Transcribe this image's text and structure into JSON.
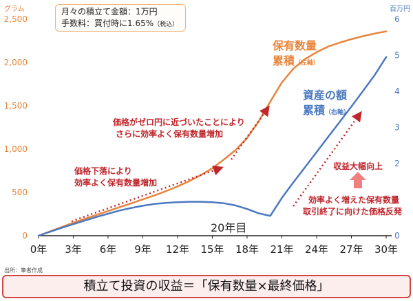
{
  "info": {
    "line1": "月々の積立て金額：1万円",
    "line2": "手数料：買付時に1.65%",
    "line2_note": "（税込）"
  },
  "units": {
    "left": "グラム",
    "right": "百万円"
  },
  "source": "出所：筆者作成",
  "bottom_formula": "積立て投資の収益＝「保有数量×最終価格」",
  "labels": {
    "quantity_l1": "保有数量",
    "quantity_l2": "累積",
    "quantity_axis": "（左軸）",
    "asset_l1": "資産の額",
    "asset_l2": "累積",
    "asset_axis": "（右軸）"
  },
  "annotations": {
    "a1_l1": "価格がゼロ円に近づいたことにより",
    "a1_l2": "さらに効率よく保有数量増加",
    "a2_l1": "価格下落により",
    "a2_l2": "効率よく保有数量増加",
    "a3": "収益大幅向上",
    "a4_l1": "効率よく増えた保有数量",
    "a4_l2": "取引終了に向けた価格反発",
    "year20": "20年目"
  },
  "colors": {
    "orange": "#e8843a",
    "blue": "#4a78c0",
    "red": "#c0262c",
    "arrow": "#f08080"
  },
  "chart_data": {
    "type": "line",
    "x_ticks": [
      "0年",
      "3年",
      "6年",
      "9年",
      "12年",
      "15年",
      "18年",
      "21年",
      "24年",
      "27年",
      "30年"
    ],
    "x_range": [
      0,
      30
    ],
    "y_left_ticks": [
      "0",
      "500",
      "1,000",
      "1,500",
      "2,000",
      "2,500"
    ],
    "y_left_range": [
      0,
      2500
    ],
    "y_right_ticks": [
      "0",
      "1",
      "2",
      "3",
      "4",
      "5",
      "6"
    ],
    "y_right_range": [
      0,
      6
    ],
    "grid": false,
    "series": [
      {
        "name": "保有数量 累積",
        "axis": "left",
        "color": "#e8843a",
        "x": [
          0,
          1,
          2,
          3,
          4,
          5,
          6,
          7,
          8,
          9,
          10,
          11,
          12,
          13,
          14,
          15,
          16,
          17,
          18,
          19,
          20,
          21,
          22,
          23,
          24,
          25,
          26,
          27,
          28,
          29,
          30
        ],
        "y": [
          0,
          50,
          100,
          150,
          195,
          240,
          285,
          330,
          375,
          420,
          465,
          515,
          570,
          630,
          700,
          780,
          880,
          990,
          1130,
          1320,
          1550,
          1770,
          1930,
          2040,
          2120,
          2185,
          2230,
          2270,
          2305,
          2335,
          2360
        ]
      },
      {
        "name": "資産の額 累積",
        "axis": "right",
        "color": "#4a78c0",
        "x": [
          0,
          1,
          2,
          3,
          4,
          5,
          6,
          7,
          8,
          9,
          10,
          11,
          12,
          13,
          14,
          15,
          16,
          17,
          18,
          19,
          20,
          21,
          22,
          23,
          24,
          25,
          26,
          27,
          28,
          29,
          30
        ],
        "y": [
          0,
          0.11,
          0.22,
          0.32,
          0.42,
          0.52,
          0.61,
          0.7,
          0.77,
          0.83,
          0.88,
          0.91,
          0.93,
          0.94,
          0.94,
          0.93,
          0.9,
          0.84,
          0.74,
          0.62,
          0.55,
          1.05,
          1.48,
          1.9,
          2.32,
          2.74,
          3.16,
          3.58,
          4.01,
          4.45,
          4.95
        ]
      }
    ]
  }
}
